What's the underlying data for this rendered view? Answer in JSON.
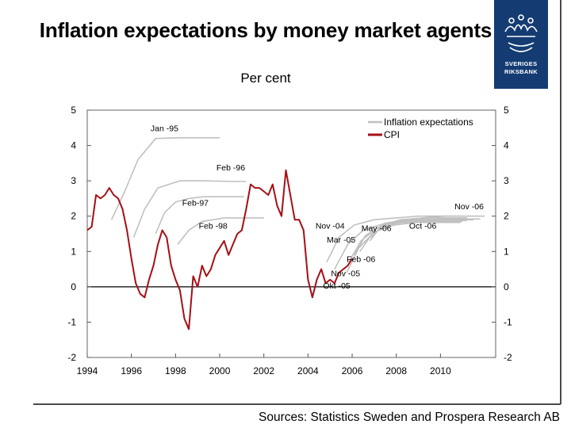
{
  "title": "Inflation expectations by money market agents",
  "subtitle": "Per cent",
  "sources": "Sources: Statistics Sweden and Prospera Research AB",
  "logo": {
    "line1": "SVERIGES",
    "line2": "RIKSBANK"
  },
  "colors": {
    "cpi": "#a50f15",
    "expectations": "#c0c0c0",
    "logo": "#143c73"
  },
  "chart_data": {
    "type": "line",
    "title": "Inflation expectations by money market agents",
    "ylabel": "Per cent",
    "xlim": [
      1994,
      2012.5
    ],
    "ylim": [
      -2,
      5
    ],
    "x_ticks": [
      1994,
      1996,
      1998,
      2000,
      2002,
      2004,
      2006,
      2008,
      2010
    ],
    "y_ticks": [
      5,
      4,
      3,
      2,
      1,
      0,
      -1,
      -2
    ],
    "legend": [
      "Inflation expectations",
      "CPI"
    ],
    "legend_position": "top-right",
    "series": [
      {
        "name": "CPI",
        "kind": "actual",
        "x": [
          1994.0,
          1994.2,
          1994.4,
          1994.6,
          1994.8,
          1995.0,
          1995.2,
          1995.4,
          1995.6,
          1995.8,
          1996.0,
          1996.2,
          1996.4,
          1996.6,
          1996.8,
          1997.0,
          1997.2,
          1997.4,
          1997.6,
          1997.8,
          1998.0,
          1998.2,
          1998.4,
          1998.6,
          1998.8,
          1999.0,
          1999.2,
          1999.4,
          1999.6,
          1999.8,
          2000.0,
          2000.2,
          2000.4,
          2000.6,
          2000.8,
          2001.0,
          2001.2,
          2001.4,
          2001.6,
          2001.8,
          2002.0,
          2002.2,
          2002.4,
          2002.6,
          2002.8,
          2003.0,
          2003.2,
          2003.4,
          2003.6,
          2003.8,
          2004.0,
          2004.2,
          2004.4,
          2004.6,
          2004.8,
          2005.0,
          2005.2,
          2005.4,
          2005.6,
          2005.8,
          2006.0
        ],
        "y": [
          1.6,
          1.7,
          2.6,
          2.5,
          2.6,
          2.8,
          2.6,
          2.5,
          2.2,
          1.6,
          0.8,
          0.1,
          -0.2,
          -0.3,
          0.2,
          0.6,
          1.2,
          1.6,
          1.4,
          0.6,
          0.2,
          -0.1,
          -0.9,
          -1.2,
          0.3,
          0.0,
          0.6,
          0.3,
          0.5,
          0.9,
          1.1,
          1.3,
          0.9,
          1.2,
          1.5,
          1.6,
          2.2,
          2.9,
          2.8,
          2.8,
          2.7,
          2.6,
          2.9,
          2.3,
          2.0,
          3.3,
          2.6,
          1.9,
          1.9,
          1.6,
          0.2,
          -0.3,
          0.2,
          0.5,
          0.1,
          0.2,
          0.1,
          0.4,
          0.5,
          0.6,
          0.8
        ]
      },
      {
        "name": "Jan -95",
        "kind": "expectation",
        "x": [
          1995.1,
          1995.7,
          1996.3,
          1997.1,
          1998.2,
          1999.2,
          2000.0
        ],
        "y": [
          1.9,
          2.7,
          3.6,
          4.2,
          4.22,
          4.22,
          4.22
        ]
      },
      {
        "name": "Feb -96",
        "kind": "expectation",
        "x": [
          1996.1,
          1996.6,
          1997.2,
          1998.2,
          1999.2,
          2000.6,
          2001.2
        ],
        "y": [
          1.4,
          2.2,
          2.8,
          3.0,
          3.0,
          2.98,
          2.98
        ]
      },
      {
        "name": "Feb-97",
        "kind": "expectation",
        "x": [
          1997.1,
          1997.5,
          1998.0,
          1998.6,
          1999.3,
          2000.4,
          2001.1
        ],
        "y": [
          1.5,
          2.1,
          2.4,
          2.5,
          2.55,
          2.55,
          2.55
        ]
      },
      {
        "name": "Feb -98",
        "kind": "expectation",
        "x": [
          1998.1,
          1998.6,
          1999.2,
          2000.2,
          2001.2,
          2002.0
        ],
        "y": [
          1.2,
          1.6,
          1.85,
          1.95,
          1.95,
          1.95
        ]
      },
      {
        "name": "Nov -04",
        "kind": "expectation",
        "x": [
          2004.85,
          2005.4,
          2006.1,
          2007.0,
          2008.0,
          2009.0,
          2010.0,
          2011.0
        ],
        "y": [
          0.7,
          1.4,
          1.75,
          1.9,
          1.95,
          2.0,
          2.0,
          2.0
        ]
      },
      {
        "name": "Mar -05",
        "kind": "expectation",
        "x": [
          2005.2,
          2005.8,
          2006.5,
          2007.5,
          2008.5,
          2009.5,
          2010.5,
          2011.2
        ],
        "y": [
          0.5,
          1.2,
          1.6,
          1.8,
          1.9,
          1.95,
          1.95,
          1.95
        ]
      },
      {
        "name": "May -06",
        "kind": "expectation",
        "x": [
          2006.35,
          2006.9,
          2007.6,
          2008.5,
          2009.5,
          2010.5,
          2011.5
        ],
        "y": [
          1.0,
          1.5,
          1.75,
          1.85,
          1.9,
          1.9,
          1.9
        ]
      },
      {
        "name": "Feb -06",
        "kind": "expectation",
        "x": [
          2006.1,
          2006.6,
          2007.3,
          2008.2,
          2009.2,
          2010.2,
          2011.2
        ],
        "y": [
          0.9,
          1.45,
          1.72,
          1.84,
          1.88,
          1.88,
          1.88
        ]
      },
      {
        "name": "Nov -05",
        "kind": "expectation",
        "x": [
          2005.85,
          2006.4,
          2007.1,
          2008.0,
          2009.0,
          2010.0,
          2011.0
        ],
        "y": [
          0.7,
          1.3,
          1.65,
          1.8,
          1.85,
          1.85,
          1.85
        ]
      },
      {
        "name": "Okt -05",
        "kind": "expectation",
        "x": [
          2005.75,
          2006.3,
          2007.0,
          2007.9,
          2008.9,
          2009.9,
          2010.9
        ],
        "y": [
          0.4,
          1.1,
          1.55,
          1.75,
          1.82,
          1.82,
          1.82
        ]
      },
      {
        "name": "Oct -06",
        "kind": "expectation",
        "x": [
          2006.8,
          2007.3,
          2008.0,
          2009.0,
          2010.0,
          2011.0,
          2011.8
        ],
        "y": [
          1.3,
          1.7,
          1.85,
          1.9,
          1.92,
          1.92,
          1.92
        ]
      },
      {
        "name": "Nov -06",
        "kind": "expectation",
        "x": [
          2006.85,
          2007.4,
          2008.2,
          2009.2,
          2010.2,
          2011.2,
          2012.0
        ],
        "y": [
          1.4,
          1.75,
          1.9,
          1.95,
          2.0,
          2.0,
          2.0
        ]
      }
    ],
    "annotations": [
      {
        "text": "Jan -95",
        "x": 1997.5,
        "y": 4.4
      },
      {
        "text": "Feb -96",
        "x": 2000.5,
        "y": 3.3
      },
      {
        "text": "Feb-97",
        "x": 1998.9,
        "y": 2.3
      },
      {
        "text": "Feb -98",
        "x": 1999.7,
        "y": 1.65
      },
      {
        "text": "Nov -04",
        "x": 2005.0,
        "y": 1.65
      },
      {
        "text": "May -06",
        "x": 2007.1,
        "y": 1.58
      },
      {
        "text": "Mar -05",
        "x": 2005.5,
        "y": 1.25
      },
      {
        "text": "Feb -06",
        "x": 2006.4,
        "y": 0.7
      },
      {
        "text": "Nov -05",
        "x": 2005.7,
        "y": 0.3
      },
      {
        "text": "Okt -05",
        "x": 2005.3,
        "y": -0.05
      },
      {
        "text": "Oct -06",
        "x": 2009.2,
        "y": 1.65
      },
      {
        "text": "Nov -06",
        "x": 2011.3,
        "y": 2.2
      }
    ]
  }
}
